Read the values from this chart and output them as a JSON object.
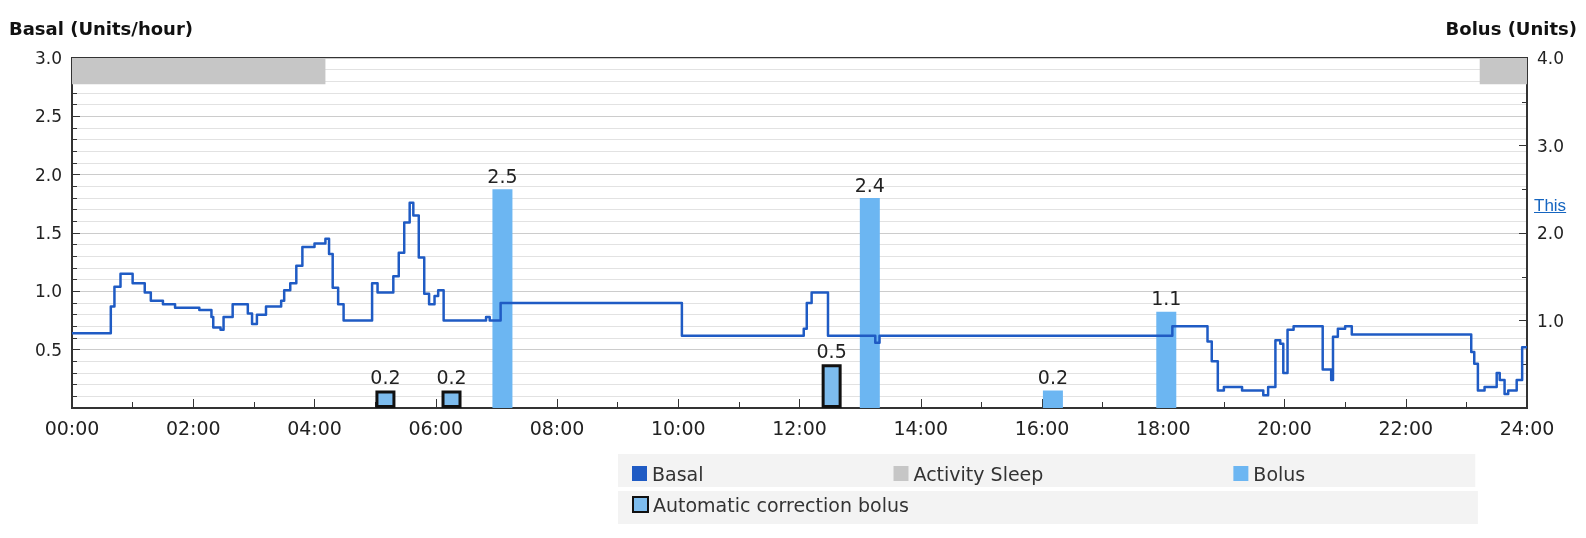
{
  "chart_data": {
    "type": "step",
    "ylabel": "Basal (Units/hour)",
    "y2label": "Bolus (Units)",
    "xlim": [
      0,
      24
    ],
    "xticks": [
      {
        "value": 0,
        "label": "00:00"
      },
      {
        "value": 2,
        "label": "02:00"
      },
      {
        "value": 4,
        "label": "04:00"
      },
      {
        "value": 6,
        "label": "06:00"
      },
      {
        "value": 8,
        "label": "08:00"
      },
      {
        "value": 10,
        "label": "10:00"
      },
      {
        "value": 12,
        "label": "12:00"
      },
      {
        "value": 14,
        "label": "14:00"
      },
      {
        "value": 16,
        "label": "16:00"
      },
      {
        "value": 18,
        "label": "18:00"
      },
      {
        "value": 20,
        "label": "20:00"
      },
      {
        "value": 22,
        "label": "22:00"
      },
      {
        "value": 24,
        "label": "24:00"
      }
    ],
    "ylim": [
      0,
      3
    ],
    "yticks": [
      {
        "value": 0,
        "label": null
      },
      0.5,
      {
        "value": 1,
        "label": "1.0"
      },
      1.5,
      {
        "value": 2,
        "label": "2.0"
      },
      2.5,
      {
        "value": 3,
        "label": "3.0"
      }
    ],
    "y2lim": [
      0,
      4
    ],
    "y2ticks": [
      {
        "value": 0,
        "label": null
      },
      {
        "value": 1,
        "label": "1.0"
      },
      {
        "value": 2,
        "label": "2.0"
      },
      {
        "value": 3,
        "label": "3.0"
      },
      {
        "value": 4,
        "label": "4.0"
      }
    ],
    "grid": "y",
    "legend": "bottom right",
    "marker": "none",
    "series": [
      {
        "name": "Basal",
        "color": "#1f5bc4",
        "x": [
          0,
          0.64,
          0.7,
          0.8,
          1.0,
          1.2,
          1.3,
          1.5,
          1.7,
          2.1,
          2.3,
          2.33,
          2.45,
          2.5,
          2.65,
          2.9,
          2.97,
          3.05,
          3.2,
          3.45,
          3.5,
          3.6,
          3.7,
          3.8,
          4.0,
          4.18,
          4.24,
          4.3,
          4.39,
          4.48,
          4.95,
          5.04,
          5.3,
          5.39,
          5.48,
          5.57,
          5.63,
          5.72,
          5.81,
          5.89,
          5.98,
          6.04,
          6.13,
          6.83,
          6.89,
          7.07,
          10.06,
          12.07,
          12.12,
          12.2,
          12.3,
          12.47,
          13.25,
          13.32,
          18.15,
          18.73,
          18.8,
          18.9,
          19.0,
          19.3,
          19.42,
          19.65,
          19.73,
          19.85,
          19.93,
          19.98,
          20.05,
          20.15,
          20.63,
          20.77,
          20.8,
          20.88,
          21.0,
          21.11,
          23.08,
          23.13,
          23.19,
          23.3,
          23.5,
          23.55,
          23.63,
          23.69,
          23.83,
          23.92,
          24
        ],
        "values": [
          0.64,
          0.87,
          1.04,
          1.15,
          1.07,
          0.99,
          0.92,
          0.89,
          0.86,
          0.84,
          0.78,
          0.69,
          0.67,
          0.78,
          0.89,
          0.81,
          0.72,
          0.8,
          0.87,
          0.92,
          1.01,
          1.07,
          1.22,
          1.38,
          1.41,
          1.45,
          1.32,
          1.03,
          0.89,
          0.75,
          1.07,
          0.99,
          1.13,
          1.33,
          1.59,
          1.76,
          1.65,
          1.29,
          0.98,
          0.89,
          0.96,
          1.01,
          0.75,
          0.78,
          0.75,
          0.9,
          0.62,
          0.68,
          0.9,
          0.99,
          0.99,
          0.62,
          0.56,
          0.62,
          0.7,
          0.57,
          0.4,
          0.15,
          0.18,
          0.15,
          0.15,
          0.11,
          0.18,
          0.58,
          0.55,
          0.3,
          0.67,
          0.7,
          0.33,
          0.24,
          0.61,
          0.68,
          0.7,
          0.63,
          0.48,
          0.38,
          0.15,
          0.18,
          0.3,
          0.24,
          0.12,
          0.15,
          0.24,
          0.52,
          0.52
        ]
      },
      {
        "name": "Bolus",
        "type": "bar",
        "axis": "y2",
        "color": "#6cb6f2",
        "data_labels": true,
        "x": [
          7.1,
          13.16,
          16.18,
          18.05
        ],
        "values": [
          2.5,
          2.4,
          0.2,
          1.1
        ]
      },
      {
        "name": "Automatic correction bolus",
        "type": "bar",
        "axis": "y2",
        "color": "#7dbcee",
        "data_labels": true,
        "x": [
          5.17,
          6.26,
          12.53
        ],
        "values": [
          0.2,
          0.2,
          0.5
        ]
      }
    ],
    "bands": [
      {
        "axis": "x",
        "from": 0,
        "to": 4.18,
        "label": "Activity Sleep",
        "color": "#c6c6c6"
      },
      {
        "axis": "x",
        "from": 23.22,
        "to": 24,
        "color": "#c6c6c6"
      }
    ],
    "annotations": [
      "This"
    ]
  }
}
